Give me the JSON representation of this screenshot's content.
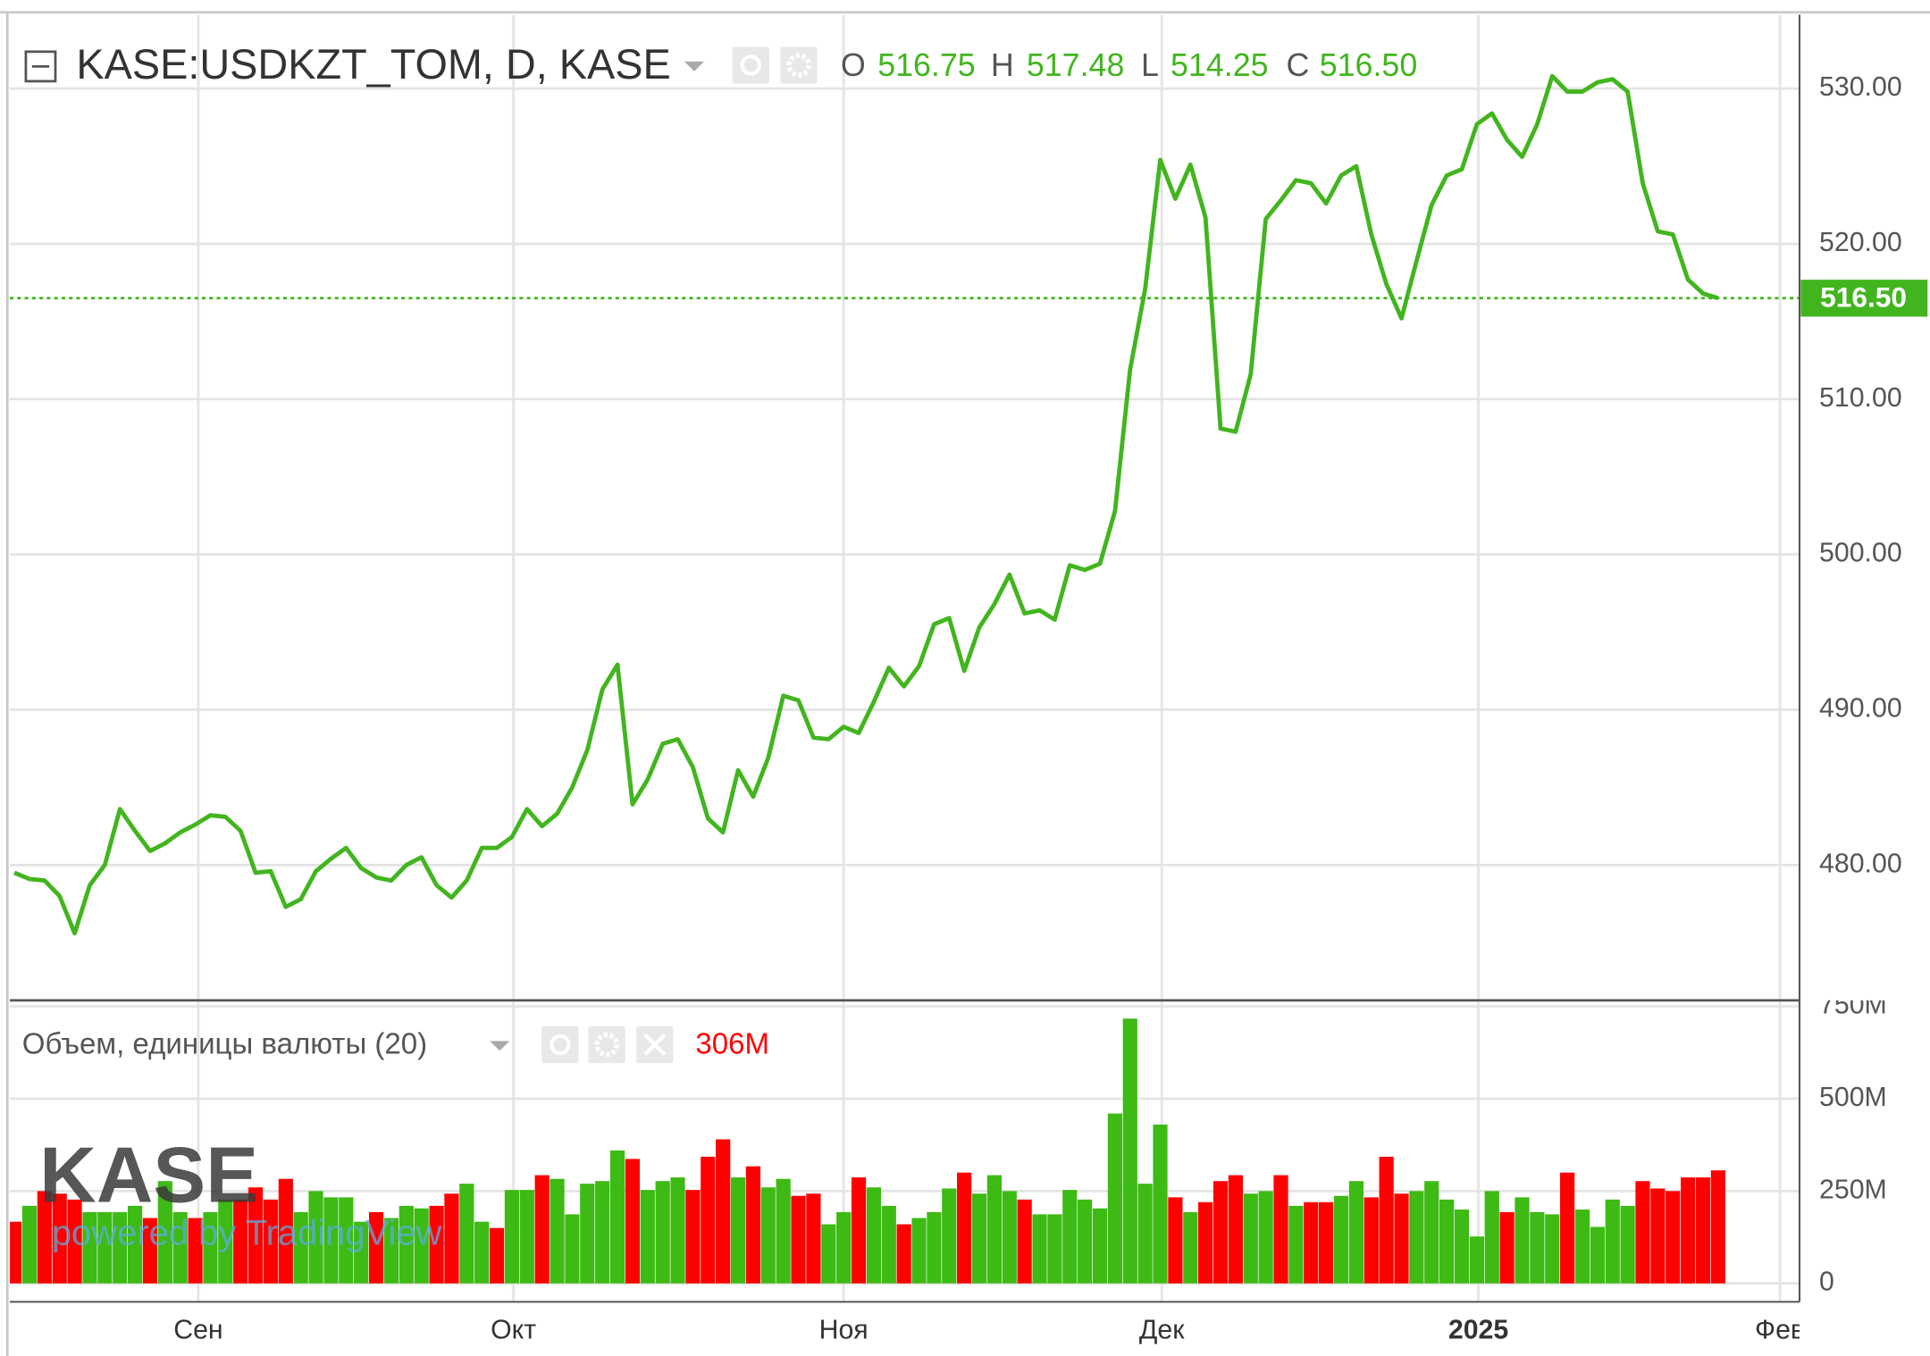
{
  "chart_data": [
    {
      "type": "line",
      "title": "KASE:USDKZT_TOM, D, KASE",
      "ohlc": [
        {
          "name": "O",
          "value": 516.75,
          "label": "516.75"
        },
        {
          "name": "H",
          "value": 517.48,
          "label": "517.48"
        },
        {
          "name": "L",
          "value": 514.25,
          "label": "514.25"
        },
        {
          "name": "C",
          "value": 516.5,
          "label": "516.50"
        }
      ],
      "values": [
        479.5,
        479.1,
        479.0,
        478.0,
        475.6,
        478.7,
        480.0,
        483.6,
        482.2,
        480.9,
        481.4,
        482.1,
        482.6,
        483.2,
        483.1,
        482.2,
        479.5,
        479.6,
        477.3,
        477.8,
        479.6,
        480.4,
        481.1,
        479.8,
        479.2,
        479.0,
        480.0,
        480.5,
        478.7,
        477.9,
        479.0,
        481.1,
        481.1,
        481.8,
        483.6,
        482.5,
        483.3,
        485.0,
        487.4,
        491.3,
        492.9,
        483.9,
        485.5,
        487.8,
        488.1,
        486.3,
        483.0,
        482.1,
        486.1,
        484.4,
        486.9,
        490.9,
        490.6,
        488.2,
        488.1,
        488.9,
        488.5,
        490.5,
        492.7,
        491.5,
        492.8,
        495.5,
        495.9,
        492.5,
        495.3,
        496.8,
        498.7,
        496.2,
        496.4,
        495.8,
        499.3,
        499.0,
        499.4,
        502.8,
        511.9,
        517.1,
        525.4,
        522.9,
        525.1,
        521.7,
        508.1,
        507.9,
        511.6,
        521.6,
        522.8,
        524.1,
        523.9,
        522.6,
        524.4,
        525.0,
        520.6,
        517.4,
        515.2,
        518.9,
        522.5,
        524.4,
        524.8,
        527.7,
        528.4,
        526.7,
        525.6,
        527.7,
        530.8,
        529.8,
        529.8,
        530.4,
        530.6,
        529.8,
        523.9,
        520.8,
        520.6,
        517.7,
        516.8,
        516.5
      ],
      "color": "#42b51e",
      "last_price": {
        "value": 516.5,
        "label": "516.50"
      },
      "xlim": [
        -0.3,
        118.4
      ],
      "xticks": [
        {
          "value": 12.2,
          "label": "Сен"
        },
        {
          "value": 33.1,
          "label": "Окт"
        },
        {
          "value": 55.0,
          "label": "Ноя"
        },
        {
          "value": 76.1,
          "label": "Дек"
        },
        {
          "value": 97.1,
          "label": "2025"
        },
        {
          "value": 117.1,
          "label": "Фев"
        }
      ],
      "ylim": [
        471.36,
        534.75
      ],
      "yticks": [
        {
          "value": 480,
          "label": "480.00"
        },
        {
          "value": 490,
          "label": "490.00"
        },
        {
          "value": 500,
          "label": "500.00"
        },
        {
          "value": 510,
          "label": "510.00"
        },
        {
          "value": 520,
          "label": "520.00"
        },
        {
          "value": 530,
          "label": "530.00"
        }
      ],
      "grid": true,
      "watermark": {
        "logo": "KASE",
        "text": "powered by TradingView"
      }
    },
    {
      "type": "bar",
      "title": "Объем, единицы валюты (20)",
      "legend_value": "306M",
      "values": [
        167,
        210,
        250,
        243,
        227,
        193,
        193,
        193,
        210,
        177,
        277,
        193,
        177,
        193,
        227,
        227,
        260,
        227,
        283,
        193,
        250,
        233,
        233,
        167,
        193,
        177,
        210,
        203,
        210,
        243,
        270,
        167,
        150,
        253,
        253,
        293,
        283,
        187,
        270,
        277,
        360,
        337,
        253,
        277,
        287,
        253,
        343,
        390,
        287,
        317,
        260,
        283,
        237,
        243,
        160,
        193,
        287,
        260,
        210,
        160,
        177,
        193,
        257,
        300,
        243,
        293,
        250,
        227,
        187,
        187,
        253,
        227,
        203,
        460,
        717,
        270,
        430,
        233,
        193,
        220,
        277,
        293,
        243,
        250,
        293,
        210,
        220,
        220,
        237,
        277,
        233,
        343,
        243,
        250,
        277,
        227,
        200,
        127,
        250,
        193,
        233,
        193,
        187,
        300,
        200,
        153,
        227,
        210,
        277,
        257,
        250,
        287,
        287,
        306
      ],
      "colors": [
        "#ff0000",
        "#3dba14",
        "#ff0000",
        "#ff0000",
        "#ff0000",
        "#3dba14",
        "#3dba14",
        "#3dba14",
        "#3dba14",
        "#ff0000",
        "#3dba14",
        "#3dba14",
        "#ff0000",
        "#3dba14",
        "#3dba14",
        "#ff0000",
        "#ff0000",
        "#ff0000",
        "#ff0000",
        "#3dba14",
        "#3dba14",
        "#3dba14",
        "#3dba14",
        "#3dba14",
        "#ff0000",
        "#3dba14",
        "#3dba14",
        "#3dba14",
        "#ff0000",
        "#ff0000",
        "#3dba14",
        "#3dba14",
        "#ff0000",
        "#3dba14",
        "#3dba14",
        "#ff0000",
        "#3dba14",
        "#3dba14",
        "#3dba14",
        "#3dba14",
        "#3dba14",
        "#ff0000",
        "#3dba14",
        "#3dba14",
        "#3dba14",
        "#ff0000",
        "#ff0000",
        "#ff0000",
        "#3dba14",
        "#ff0000",
        "#3dba14",
        "#3dba14",
        "#ff0000",
        "#ff0000",
        "#3dba14",
        "#3dba14",
        "#ff0000",
        "#3dba14",
        "#3dba14",
        "#ff0000",
        "#3dba14",
        "#3dba14",
        "#3dba14",
        "#ff0000",
        "#3dba14",
        "#3dba14",
        "#3dba14",
        "#ff0000",
        "#3dba14",
        "#3dba14",
        "#3dba14",
        "#3dba14",
        "#3dba14",
        "#3dba14",
        "#3dba14",
        "#3dba14",
        "#3dba14",
        "#ff0000",
        "#3dba14",
        "#ff0000",
        "#ff0000",
        "#ff0000",
        "#3dba14",
        "#3dba14",
        "#ff0000",
        "#3dba14",
        "#ff0000",
        "#ff0000",
        "#3dba14",
        "#3dba14",
        "#ff0000",
        "#ff0000",
        "#ff0000",
        "#3dba14",
        "#3dba14",
        "#3dba14",
        "#3dba14",
        "#3dba14",
        "#3dba14",
        "#ff0000",
        "#3dba14",
        "#3dba14",
        "#3dba14",
        "#ff0000",
        "#3dba14",
        "#3dba14",
        "#3dba14",
        "#3dba14",
        "#ff0000",
        "#ff0000",
        "#ff0000",
        "#ff0000",
        "#ff0000",
        "#ff0000"
      ],
      "ylim": [
        -50,
        763
      ],
      "yticks": [
        0,
        {
          "value": 250,
          "label": "250M"
        },
        {
          "value": 500,
          "label": "500M"
        },
        {
          "value": 750,
          "label": "750M"
        }
      ]
    }
  ]
}
